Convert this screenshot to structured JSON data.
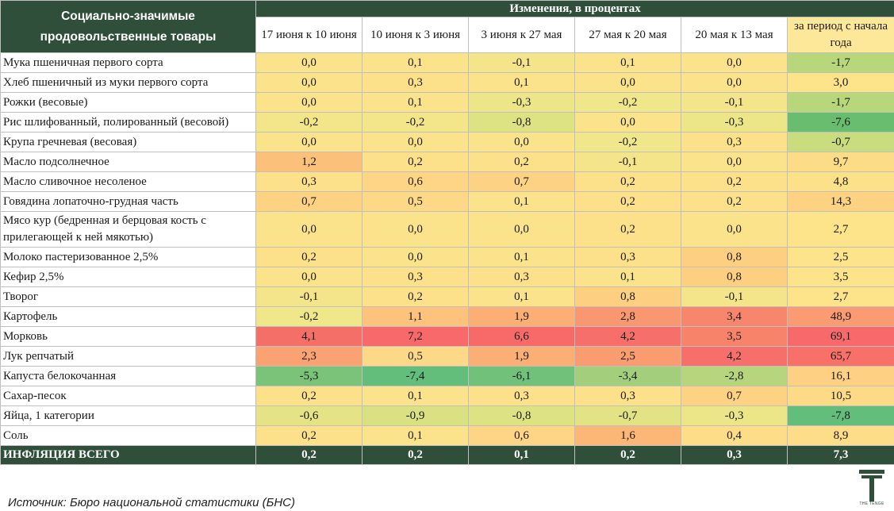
{
  "table": {
    "title": "Социально-значимые продовольственные товары",
    "group_header": "Изменения, в процентах",
    "columns": [
      "17 июня к 10 июня",
      "10 июня к 3 июня",
      "3 июня к 27 мая",
      "27 мая к 20 мая",
      "20 мая к 13 мая",
      "за период с начала года"
    ],
    "rows": [
      {
        "name": "Мука пшеничная первого сорта",
        "values": [
          "0,0",
          "0,1",
          "-0,1",
          "0,1",
          "0,0",
          "-1,7"
        ],
        "colors": [
          "#fbe38c",
          "#fbe38c",
          "#f5e58a",
          "#fbe38c",
          "#fbe38c",
          "#b8d67a"
        ]
      },
      {
        "name": "Хлеб пшеничный из муки первого сорта",
        "values": [
          "0,0",
          "0,3",
          "0,1",
          "0,0",
          "0,0",
          "3,0"
        ],
        "colors": [
          "#fbe38c",
          "#fde08a",
          "#fbe38c",
          "#fbe38c",
          "#fbe38c",
          "#fde389"
        ]
      },
      {
        "name": "Рожки (весовые)",
        "values": [
          "0,0",
          "0,1",
          "-0,3",
          "-0,2",
          "-0,1",
          "-1,7"
        ],
        "colors": [
          "#fbe38c",
          "#fbe38c",
          "#ece689",
          "#f0e68a",
          "#f5e58a",
          "#b8d67a"
        ]
      },
      {
        "name": "Рис шлифованный, полированный (весовой)",
        "values": [
          "-0,2",
          "-0,2",
          "-0,8",
          "0,0",
          "-0,3",
          "-7,6"
        ],
        "colors": [
          "#f3e58a",
          "#f3e58a",
          "#dde283",
          "#fbe38c",
          "#ece689",
          "#69bd6e"
        ]
      },
      {
        "name": "Крупа гречневая (весовая)",
        "values": [
          "0,0",
          "0,0",
          "0,0",
          "-0,2",
          "0,3",
          "-0,7"
        ],
        "colors": [
          "#fbe38c",
          "#fbe38c",
          "#fbe38c",
          "#f0e68a",
          "#fde08a",
          "#c9dc7e"
        ]
      },
      {
        "name": "Масло подсолнечное",
        "values": [
          "1,2",
          "0,2",
          "0,2",
          "-0,1",
          "0,0",
          "9,7"
        ],
        "colors": [
          "#fbc07a",
          "#fde08a",
          "#fde08a",
          "#f5e58a",
          "#fbe38c",
          "#fddc87"
        ]
      },
      {
        "name": "Масло сливочное несоленое",
        "values": [
          "0,3",
          "0,6",
          "0,7",
          "0,2",
          "0,2",
          "4,8"
        ],
        "colors": [
          "#fde08a",
          "#fdd585",
          "#fdd283",
          "#fde08a",
          "#fde08a",
          "#fde189"
        ]
      },
      {
        "name": "Говядина лопаточно-грудная часть",
        "values": [
          "0,7",
          "0,5",
          "0,1",
          "0,2",
          "0,2",
          "14,3"
        ],
        "colors": [
          "#fdd283",
          "#fdd886",
          "#fbe38c",
          "#fde08a",
          "#fde08a",
          "#fdd283"
        ]
      },
      {
        "name": "Мясо кур (бедренная и берцовая кость с прилегающей к ней мякотью)",
        "values": [
          "0,0",
          "0,0",
          "0,0",
          "0,2",
          "0,0",
          "2,7"
        ],
        "colors": [
          "#fbe38c",
          "#fbe38c",
          "#fbe38c",
          "#fde08a",
          "#fbe38c",
          "#fde389"
        ]
      },
      {
        "name": "Молоко пастеризованное 2,5%",
        "values": [
          "0,2",
          "0,0",
          "0,1",
          "0,3",
          "0,8",
          "2,5"
        ],
        "colors": [
          "#fde08a",
          "#fbe38c",
          "#fbe38c",
          "#fde08a",
          "#fdcf81",
          "#fde389"
        ]
      },
      {
        "name": "Кефир 2,5%",
        "values": [
          "0,0",
          "0,3",
          "0,3",
          "0,1",
          "0,8",
          "3,5"
        ],
        "colors": [
          "#fbe38c",
          "#fde08a",
          "#fde08a",
          "#fbe38c",
          "#fdcf81",
          "#fde389"
        ]
      },
      {
        "name": "Творог",
        "values": [
          "-0,1",
          "0,2",
          "0,1",
          "0,8",
          "-0,1",
          "2,7"
        ],
        "colors": [
          "#f5e58a",
          "#fde08a",
          "#fbe38c",
          "#fdcf81",
          "#f5e58a",
          "#fde389"
        ]
      },
      {
        "name": "Картофель",
        "values": [
          "-0,2",
          "1,1",
          "1,9",
          "2,8",
          "3,4",
          "48,9"
        ],
        "colors": [
          "#f0e68a",
          "#fdc27b",
          "#fbaf74",
          "#f89770",
          "#f7866c",
          "#fa9b71"
        ]
      },
      {
        "name": "Морковь",
        "values": [
          "4,1",
          "7,2",
          "6,6",
          "4,2",
          "3,5",
          "69,1"
        ],
        "colors": [
          "#f56f69",
          "#f8696b",
          "#f66b6a",
          "#f66f6a",
          "#f7836b",
          "#f8696b"
        ]
      },
      {
        "name": "Лук репчатый",
        "values": [
          "2,3",
          "0,5",
          "1,9",
          "2,5",
          "4,2",
          "65,7"
        ],
        "colors": [
          "#faa272",
          "#fdd886",
          "#fbaf74",
          "#f99d71",
          "#f66f6a",
          "#f77169"
        ]
      },
      {
        "name": "Капуста белокочанная",
        "values": [
          "-5,3",
          "-7,4",
          "-6,1",
          "-3,4",
          "-2,8",
          "16,1"
        ],
        "colors": [
          "#7cc37a",
          "#63be7b",
          "#72c17a",
          "#a3cf7c",
          "#b7d57d",
          "#fdd083"
        ]
      },
      {
        "name": "Сахар-песок",
        "values": [
          "0,2",
          "0,1",
          "0,3",
          "0,3",
          "0,7",
          "10,5"
        ],
        "colors": [
          "#fde08a",
          "#fbe38c",
          "#fde08a",
          "#fde08a",
          "#fdd283",
          "#fdda86"
        ]
      },
      {
        "name": "Яйца, 1 категории",
        "values": [
          "-0,6",
          "-0,9",
          "-0,8",
          "-0,7",
          "-0,3",
          "-7,8"
        ],
        "colors": [
          "#e4e386",
          "#d9e183",
          "#dde283",
          "#e1e385",
          "#ece689",
          "#63be7b"
        ]
      },
      {
        "name": "Соль",
        "values": [
          "0,2",
          "0,1",
          "0,6",
          "1,6",
          "0,4",
          "8,9"
        ],
        "colors": [
          "#fde08a",
          "#fbe38c",
          "#fdd585",
          "#fcb777",
          "#fddd88",
          "#fddd88"
        ]
      }
    ],
    "total": {
      "name": "ИНФЛЯЦИЯ ВСЕГО",
      "values": [
        "0,2",
        "0,2",
        "0,1",
        "0,2",
        "0,3",
        "7,3"
      ]
    }
  },
  "source": "Источник: Бюро национальной статистики (БНС)",
  "logo": {
    "caption": "THE TENGE",
    "icon": "t-letter-logo-icon"
  },
  "colors": {
    "header_bg": "#2f4f3b",
    "header_text": "#ffffff",
    "last_col_header_bg": "#fde89a"
  }
}
